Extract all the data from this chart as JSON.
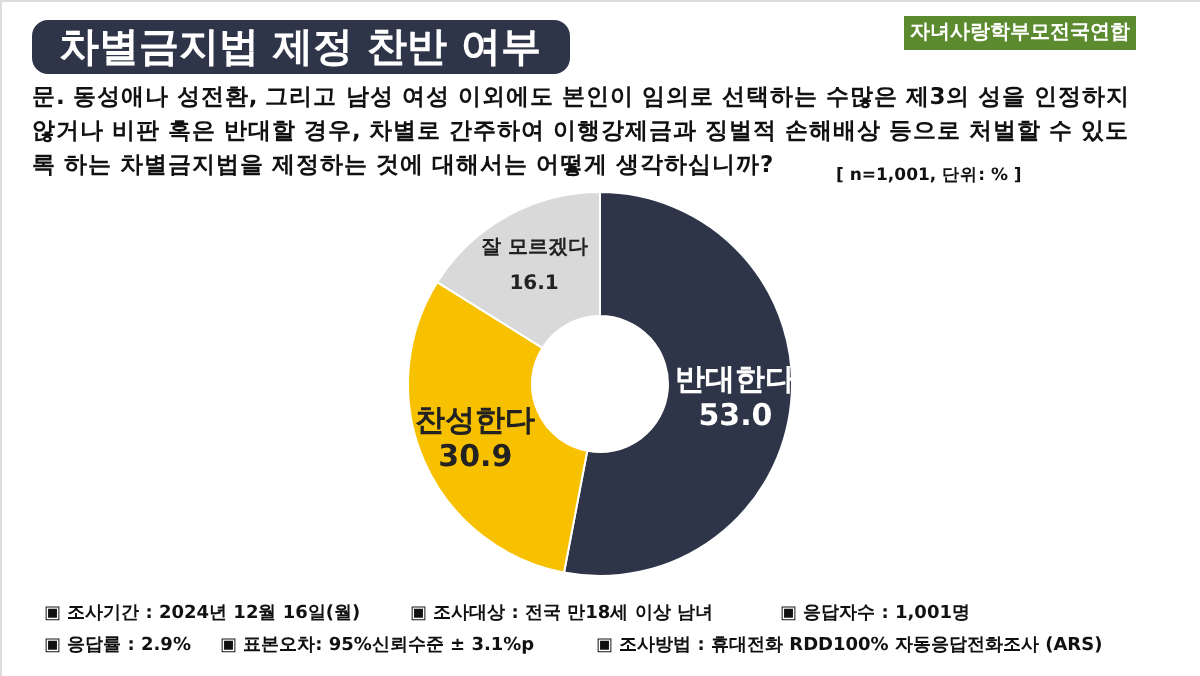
{
  "chart_data": {
    "type": "donut",
    "title": "차별금지법 제정 찬반 여부",
    "subtitle": "문. 동성애나 성전환, 그리고 남성 여성 이외에도 본인이 임의로 선택하는 수많은 제3의 성을 인정하지\n않거나 비판 혹은 반대할 경우, 차별로 간주하여 이행강제금과 징벌적 손해배상 등으로 처벌할 수 있도\n록 하는 차별금지법을 제정하는 것에 대해서는 어떻게 생각하십니까?",
    "categories": [
      "반대한다",
      "찬성한다",
      "잘 모르겠다"
    ],
    "values": [
      53.0,
      30.9,
      16.1
    ],
    "value_labels": [
      "53.0",
      "30.9",
      "16.1"
    ],
    "colors": [
      "#2e3548",
      "#f7c100",
      "#d9d9d9"
    ],
    "annotations": [
      "자녀사랑학부모전국연합",
      "[ n=1,001, 단위: % ]",
      "▣ 조사기간 : 2024년 12월 16일(월)",
      "▣ 조사대상 : 전국 만18세 이상 남녀",
      "▣ 응답자수 : 1,001명",
      "▣ 응답률 : 2.9%",
      "▣ 표본오차: 95%신뢰수준 ± 3.1%p",
      "▣ 조사방법 : 휴대전화 RDD100% 자동응답전화조사 (ARS)"
    ]
  }
}
